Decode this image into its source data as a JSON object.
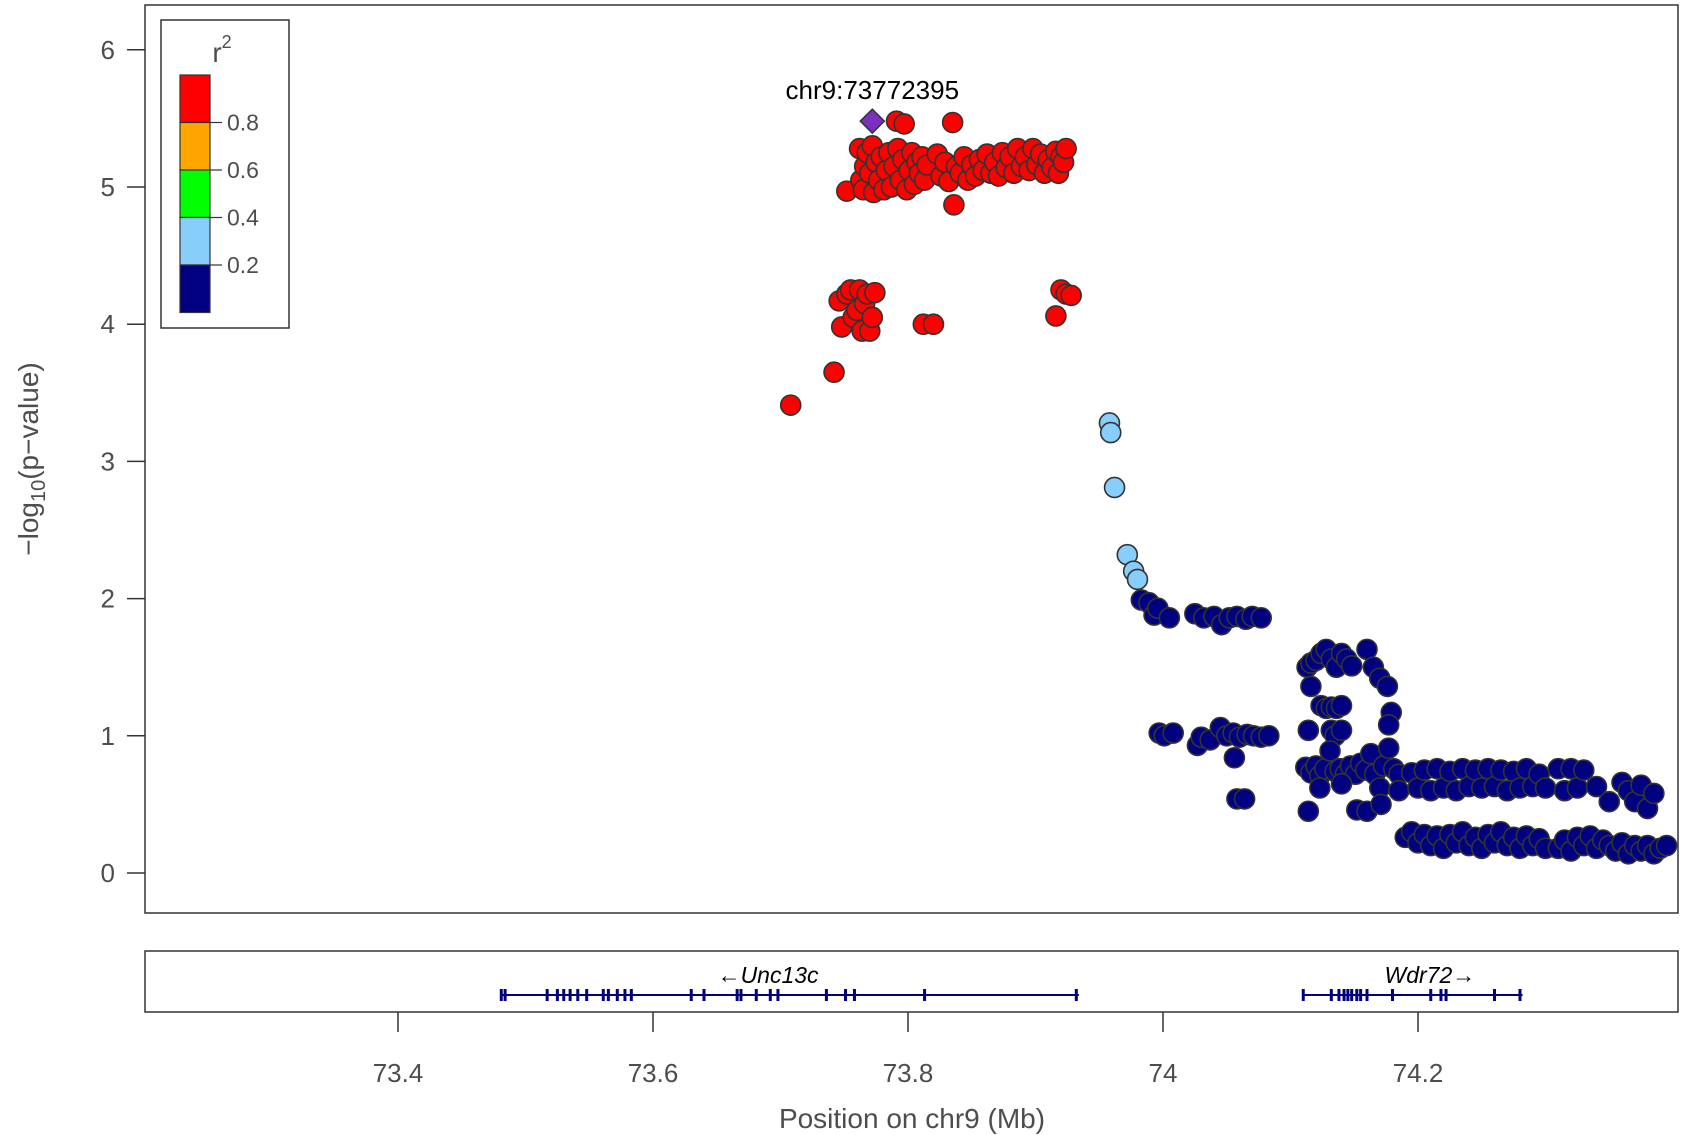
{
  "chart_data": {
    "type": "scatter",
    "title": "",
    "xlabel": "Position on chr9 (Mb)",
    "ylabel_main": "−log",
    "ylabel_sub": "10",
    "ylabel_rest": "(p−value)",
    "xlim": [
      73.2,
      74.4
    ],
    "ylim": [
      -0.3,
      6.3
    ],
    "x_ticks": [
      73.4,
      73.6,
      73.8,
      74.0,
      74.2
    ],
    "x_tick_labels": [
      "73.4",
      "73.6",
      "73.8",
      "74",
      "74.2"
    ],
    "y_ticks": [
      0,
      1,
      2,
      3,
      4,
      5,
      6
    ],
    "y_tick_labels": [
      "0",
      "1",
      "2",
      "3",
      "4",
      "5",
      "6"
    ],
    "grid": false,
    "lead_snp": {
      "label": "chr9:73772395",
      "x": 73.772,
      "y": 5.48,
      "color": "#7B2FBE"
    },
    "legend": {
      "title": "r",
      "title_sup": "2",
      "placement": "top-left",
      "bins": [
        {
          "color": "#FF0000",
          "label": "0.8"
        },
        {
          "color": "#FFA500",
          "label": "0.6"
        },
        {
          "color": "#00FF00",
          "label": "0.4"
        },
        {
          "color": "#87CEFA",
          "label": "0.2"
        },
        {
          "color": "#000080",
          "label": ""
        }
      ]
    },
    "series": [
      {
        "color": "#FF0000",
        "points": [
          [
            73.708,
            3.41
          ],
          [
            73.742,
            3.65
          ],
          [
            73.752,
            4.97
          ],
          [
            73.746,
            4.17
          ],
          [
            73.748,
            3.98
          ],
          [
            73.752,
            4.22
          ],
          [
            73.755,
            4.25
          ],
          [
            73.757,
            4.05
          ],
          [
            73.76,
            4.1
          ],
          [
            73.762,
            4.25
          ],
          [
            73.764,
            3.95
          ],
          [
            73.766,
            4.15
          ],
          [
            73.768,
            4.22
          ],
          [
            73.77,
            3.95
          ],
          [
            73.772,
            4.05
          ],
          [
            73.774,
            4.23
          ],
          [
            73.762,
            5.28
          ],
          [
            73.763,
            5.05
          ],
          [
            73.765,
            4.98
          ],
          [
            73.766,
            5.15
          ],
          [
            73.768,
            5.25
          ],
          [
            73.77,
            5.1
          ],
          [
            73.772,
            5.3
          ],
          [
            73.773,
            4.96
          ],
          [
            73.775,
            5.18
          ],
          [
            73.777,
            5.05
          ],
          [
            73.779,
            5.22
          ],
          [
            73.781,
            4.98
          ],
          [
            73.783,
            5.12
          ],
          [
            73.785,
            5.25
          ],
          [
            73.787,
            5.0
          ],
          [
            73.789,
            5.15
          ],
          [
            73.791,
            5.48
          ],
          [
            73.792,
            5.28
          ],
          [
            73.794,
            5.05
          ],
          [
            73.796,
            5.2
          ],
          [
            73.797,
            5.46
          ],
          [
            73.799,
            4.98
          ],
          [
            73.801,
            5.12
          ],
          [
            73.803,
            5.25
          ],
          [
            73.805,
            5.02
          ],
          [
            73.807,
            5.18
          ],
          [
            73.809,
            5.1
          ],
          [
            73.811,
            5.22
          ],
          [
            73.813,
            5.05
          ],
          [
            73.815,
            5.16
          ],
          [
            73.812,
            4.0
          ],
          [
            73.82,
            4.0
          ],
          [
            73.823,
            5.24
          ],
          [
            73.826,
            5.08
          ],
          [
            73.829,
            5.18
          ],
          [
            73.832,
            5.04
          ],
          [
            73.835,
            5.47
          ],
          [
            73.836,
            4.87
          ],
          [
            73.838,
            5.15
          ],
          [
            73.841,
            5.1
          ],
          [
            73.844,
            5.22
          ],
          [
            73.847,
            5.05
          ],
          [
            73.85,
            5.16
          ],
          [
            73.853,
            5.08
          ],
          [
            73.856,
            5.2
          ],
          [
            73.859,
            5.12
          ],
          [
            73.862,
            5.24
          ],
          [
            73.865,
            5.1
          ],
          [
            73.868,
            5.18
          ],
          [
            73.871,
            5.08
          ],
          [
            73.874,
            5.25
          ],
          [
            73.877,
            5.14
          ],
          [
            73.88,
            5.22
          ],
          [
            73.883,
            5.1
          ],
          [
            73.886,
            5.28
          ],
          [
            73.889,
            5.15
          ],
          [
            73.892,
            5.22
          ],
          [
            73.895,
            5.12
          ],
          [
            73.898,
            5.28
          ],
          [
            73.901,
            5.16
          ],
          [
            73.904,
            5.24
          ],
          [
            73.907,
            5.1
          ],
          [
            73.91,
            5.2
          ],
          [
            73.913,
            5.14
          ],
          [
            73.916,
            5.26
          ],
          [
            73.918,
            5.1
          ],
          [
            73.92,
            5.22
          ],
          [
            73.922,
            5.18
          ],
          [
            73.924,
            5.28
          ],
          [
            73.916,
            4.06
          ],
          [
            73.92,
            4.25
          ],
          [
            73.924,
            4.22
          ],
          [
            73.928,
            4.21
          ]
        ]
      },
      {
        "color": "#87CEFA",
        "points": [
          [
            73.958,
            3.28
          ],
          [
            73.959,
            3.21
          ],
          [
            73.962,
            2.81
          ],
          [
            73.972,
            2.32
          ],
          [
            73.977,
            2.2
          ],
          [
            73.98,
            2.14
          ]
        ]
      },
      {
        "color": "#000080",
        "points": [
          [
            73.983,
            1.99
          ],
          [
            73.989,
            1.97
          ],
          [
            73.993,
            1.88
          ],
          [
            73.996,
            1.93
          ],
          [
            74.005,
            1.86
          ],
          [
            74.025,
            1.89
          ],
          [
            74.032,
            1.86
          ],
          [
            74.04,
            1.87
          ],
          [
            74.046,
            1.81
          ],
          [
            74.052,
            1.86
          ],
          [
            74.058,
            1.87
          ],
          [
            74.065,
            1.85
          ],
          [
            74.07,
            1.87
          ],
          [
            74.077,
            1.86
          ],
          [
            73.997,
            1.02
          ],
          [
            74.001,
            1.0
          ],
          [
            74.008,
            1.02
          ],
          [
            74.027,
            0.93
          ],
          [
            74.03,
            0.99
          ],
          [
            74.037,
            0.97
          ],
          [
            74.045,
            1.06
          ],
          [
            74.05,
            1.0
          ],
          [
            74.055,
            1.02
          ],
          [
            74.06,
            0.99
          ],
          [
            74.066,
            1.01
          ],
          [
            74.071,
            1.0
          ],
          [
            74.077,
            0.99
          ],
          [
            74.083,
            1.0
          ],
          [
            74.056,
            0.84
          ],
          [
            74.058,
            0.54
          ],
          [
            74.064,
            0.54
          ],
          [
            74.113,
            1.5
          ],
          [
            74.116,
            1.53
          ],
          [
            74.12,
            1.55
          ],
          [
            74.124,
            1.6
          ],
          [
            74.128,
            1.63
          ],
          [
            74.132,
            1.56
          ],
          [
            74.136,
            1.5
          ],
          [
            74.14,
            1.6
          ],
          [
            74.144,
            1.56
          ],
          [
            74.148,
            1.51
          ],
          [
            74.124,
            1.22
          ],
          [
            74.128,
            1.2
          ],
          [
            74.132,
            1.21
          ],
          [
            74.136,
            1.2
          ],
          [
            74.14,
            1.22
          ],
          [
            74.132,
            1.04
          ],
          [
            74.135,
            1.0
          ],
          [
            74.14,
            1.04
          ],
          [
            74.114,
            1.04
          ],
          [
            74.116,
            1.36
          ],
          [
            74.16,
            1.63
          ],
          [
            74.165,
            1.5
          ],
          [
            74.17,
            1.42
          ],
          [
            74.176,
            1.36
          ],
          [
            74.179,
            1.17
          ],
          [
            74.177,
            1.08
          ],
          [
            74.112,
            0.77
          ],
          [
            74.116,
            0.73
          ],
          [
            74.12,
            0.78
          ],
          [
            74.123,
            0.71
          ],
          [
            74.127,
            0.76
          ],
          [
            74.131,
            0.89
          ],
          [
            74.135,
            0.74
          ],
          [
            74.139,
            0.76
          ],
          [
            74.143,
            0.72
          ],
          [
            74.147,
            0.78
          ],
          [
            74.151,
            0.72
          ],
          [
            74.155,
            0.8
          ],
          [
            74.159,
            0.75
          ],
          [
            74.163,
            0.87
          ],
          [
            74.166,
            0.72
          ],
          [
            74.17,
            0.62
          ],
          [
            74.173,
            0.78
          ],
          [
            74.177,
            0.91
          ],
          [
            74.181,
            0.76
          ],
          [
            74.185,
            0.72
          ],
          [
            74.114,
            0.45
          ],
          [
            74.123,
            0.62
          ],
          [
            74.14,
            0.65
          ],
          [
            74.152,
            0.46
          ],
          [
            74.16,
            0.45
          ],
          [
            74.171,
            0.5
          ],
          [
            74.185,
            0.6
          ],
          [
            74.195,
            0.73
          ],
          [
            74.2,
            0.62
          ],
          [
            74.205,
            0.75
          ],
          [
            74.21,
            0.6
          ],
          [
            74.215,
            0.76
          ],
          [
            74.22,
            0.62
          ],
          [
            74.225,
            0.74
          ],
          [
            74.23,
            0.6
          ],
          [
            74.235,
            0.76
          ],
          [
            74.24,
            0.63
          ],
          [
            74.245,
            0.75
          ],
          [
            74.25,
            0.62
          ],
          [
            74.255,
            0.76
          ],
          [
            74.26,
            0.63
          ],
          [
            74.265,
            0.75
          ],
          [
            74.27,
            0.6
          ],
          [
            74.275,
            0.74
          ],
          [
            74.28,
            0.62
          ],
          [
            74.285,
            0.76
          ],
          [
            74.29,
            0.63
          ],
          [
            74.295,
            0.72
          ],
          [
            74.3,
            0.62
          ],
          [
            74.31,
            0.76
          ],
          [
            74.315,
            0.6
          ],
          [
            74.32,
            0.76
          ],
          [
            74.325,
            0.62
          ],
          [
            74.33,
            0.75
          ],
          [
            74.34,
            0.63
          ],
          [
            74.35,
            0.52
          ],
          [
            74.36,
            0.66
          ],
          [
            74.365,
            0.6
          ],
          [
            74.37,
            0.52
          ],
          [
            74.375,
            0.64
          ],
          [
            74.38,
            0.47
          ],
          [
            74.385,
            0.58
          ],
          [
            74.19,
            0.26
          ],
          [
            74.195,
            0.3
          ],
          [
            74.2,
            0.22
          ],
          [
            74.205,
            0.28
          ],
          [
            74.21,
            0.2
          ],
          [
            74.215,
            0.27
          ],
          [
            74.22,
            0.18
          ],
          [
            74.225,
            0.28
          ],
          [
            74.23,
            0.22
          ],
          [
            74.235,
            0.3
          ],
          [
            74.24,
            0.2
          ],
          [
            74.245,
            0.26
          ],
          [
            74.25,
            0.18
          ],
          [
            74.255,
            0.28
          ],
          [
            74.26,
            0.22
          ],
          [
            74.265,
            0.3
          ],
          [
            74.27,
            0.2
          ],
          [
            74.275,
            0.26
          ],
          [
            74.28,
            0.18
          ],
          [
            74.285,
            0.27
          ],
          [
            74.29,
            0.2
          ],
          [
            74.295,
            0.25
          ],
          [
            74.3,
            0.18
          ],
          [
            74.31,
            0.18
          ],
          [
            74.315,
            0.24
          ],
          [
            74.32,
            0.16
          ],
          [
            74.325,
            0.26
          ],
          [
            74.33,
            0.2
          ],
          [
            74.335,
            0.27
          ],
          [
            74.34,
            0.18
          ],
          [
            74.345,
            0.24
          ],
          [
            74.35,
            0.2
          ],
          [
            74.355,
            0.16
          ],
          [
            74.36,
            0.22
          ],
          [
            74.365,
            0.14
          ],
          [
            74.37,
            0.2
          ],
          [
            74.375,
            0.16
          ],
          [
            74.38,
            0.2
          ],
          [
            74.385,
            0.14
          ],
          [
            74.39,
            0.18
          ],
          [
            74.395,
            0.2
          ]
        ]
      }
    ],
    "genes": [
      {
        "name": "Unc13c",
        "strand": "←",
        "start": 73.481,
        "end": 73.934,
        "exons": [
          73.481,
          73.484,
          73.517,
          73.525,
          73.53,
          73.535,
          73.541,
          73.548,
          73.561,
          73.565,
          73.572,
          73.578,
          73.583,
          73.63,
          73.64,
          73.666,
          73.669,
          73.681,
          73.692,
          73.698,
          73.736,
          73.751,
          73.758,
          73.813,
          73.932
        ]
      },
      {
        "name": "Wdr72",
        "strand": "→",
        "start": 74.11,
        "end": 74.282,
        "exons": [
          74.11,
          74.132,
          74.138,
          74.142,
          74.145,
          74.148,
          74.152,
          74.155,
          74.16,
          74.18,
          74.21,
          74.218,
          74.222,
          74.26,
          74.28
        ]
      }
    ]
  }
}
